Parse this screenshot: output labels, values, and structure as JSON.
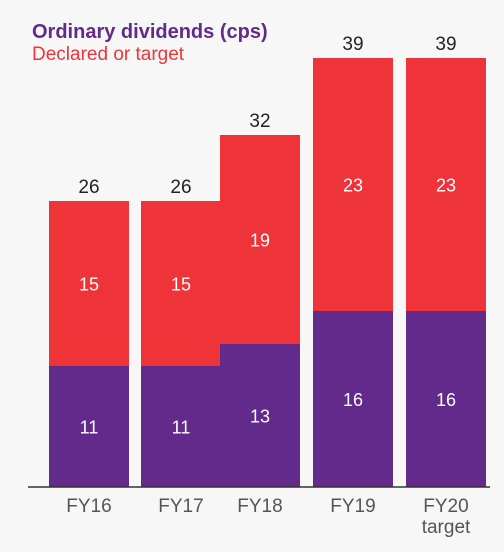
{
  "colors": {
    "background": "#f7f7f7",
    "ordinary": "#622a8a",
    "declared": "#ee3339",
    "total_label": "#222222",
    "segment_label": "#ffffff",
    "axis": "#333333",
    "category_label": "#555555"
  },
  "chart_data": {
    "type": "bar",
    "stacked": true,
    "title": "Ordinary dividends (cps)",
    "subtitle": "Declared or target",
    "categories": [
      [
        "FY16"
      ],
      [
        "FY17"
      ],
      [
        "FY18"
      ],
      [
        "FY19"
      ],
      [
        "FY20",
        "target"
      ]
    ],
    "series": [
      {
        "color": "#622a8a",
        "values": [
          11,
          11,
          13,
          16,
          16
        ]
      },
      {
        "color": "#ee3339",
        "values": [
          15,
          15,
          19,
          23,
          23
        ]
      }
    ],
    "totals": [
      26,
      26,
      32,
      39,
      39
    ],
    "ylim": [
      0,
      40
    ],
    "grid": false,
    "legend": "none"
  }
}
